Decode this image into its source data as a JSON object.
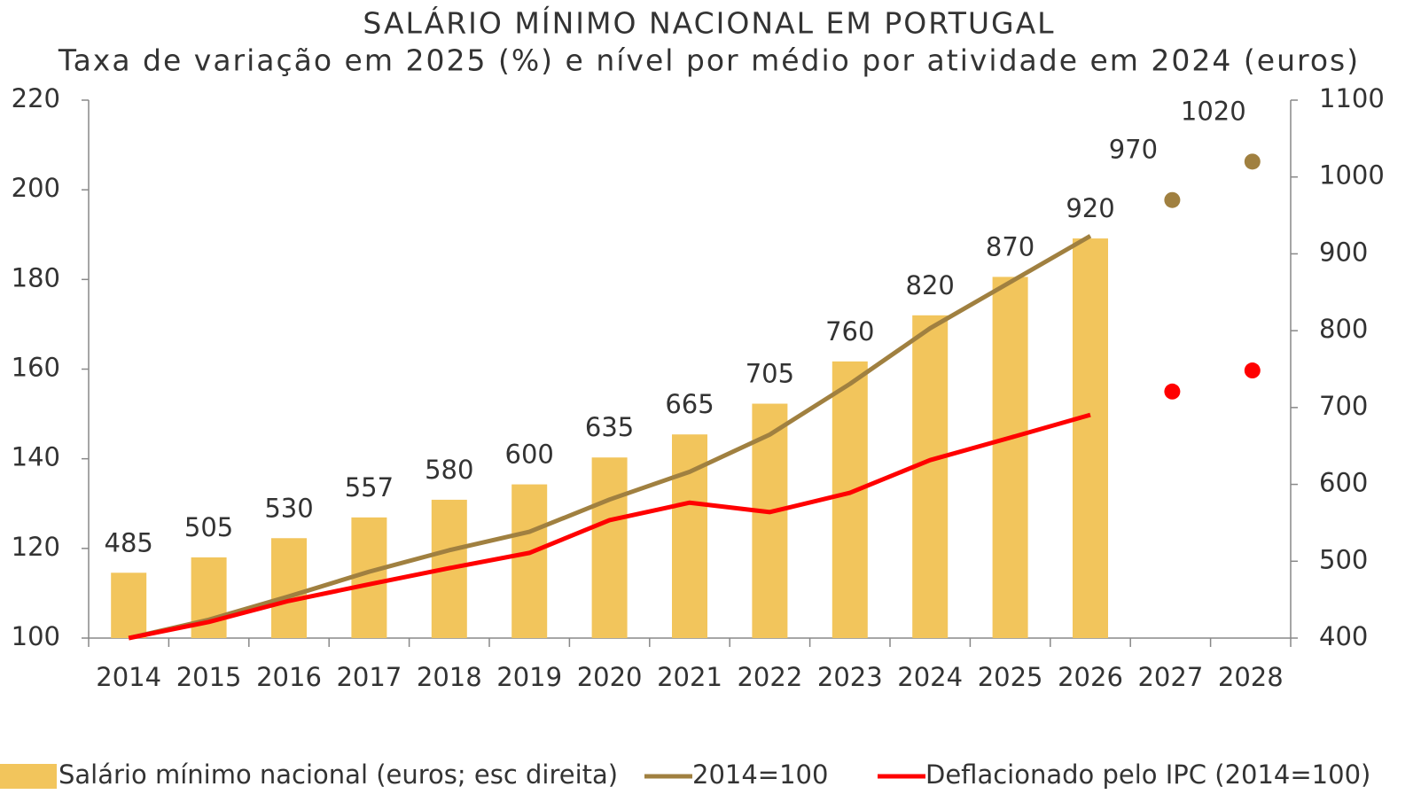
{
  "chart_data": {
    "type": "bar",
    "title": "SALÁRIO MÍNIMO NACIONAL EM PORTUGAL",
    "subtitle": "Taxa de variação em 2025 (%) e nível por médio por atividade em 2024 (euros)",
    "categories": [
      "2014",
      "2015",
      "2016",
      "2017",
      "2018",
      "2019",
      "2020",
      "2021",
      "2022",
      "2023",
      "2024",
      "2025",
      "2026",
      "2027",
      "2028"
    ],
    "ylim": [
      100,
      220
    ],
    "yticks": [
      100,
      120,
      140,
      160,
      180,
      200,
      220
    ],
    "y2lim": [
      400,
      1100
    ],
    "y2ticks": [
      400,
      500,
      600,
      700,
      800,
      900,
      1000,
      1100
    ],
    "series": [
      {
        "name": "Salário mínimo nacional (euros; esc direita)",
        "color": "#f2c55c",
        "style": "bar",
        "axis": "y2",
        "labels": true,
        "values": [
          485,
          505,
          530,
          557,
          580,
          600,
          635,
          665,
          705,
          760,
          820,
          870,
          920,
          null,
          null
        ]
      },
      {
        "name": "2014=100",
        "color": "#a08040",
        "style": "line",
        "values": [
          100,
          104.1,
          109.3,
          114.8,
          119.6,
          123.7,
          130.9,
          137.1,
          145.4,
          156.7,
          169.1,
          179.4,
          189.7,
          null,
          null
        ]
      },
      {
        "name": "Deflacionado pelo IPC (2014=100)",
        "color": "#ff0000",
        "style": "line",
        "values": [
          100,
          103.6,
          108.3,
          112,
          115.6,
          119,
          126.3,
          130.2,
          128.1,
          132.4,
          139.7,
          144.7,
          149.8,
          null,
          null
        ]
      },
      {
        "color": "#a08040",
        "style": "dot",
        "axis": "y2",
        "labels": true,
        "values": [
          null,
          null,
          null,
          null,
          null,
          null,
          null,
          null,
          null,
          null,
          null,
          null,
          null,
          970,
          1020
        ]
      },
      {
        "color": "#ff0000",
        "style": "dot",
        "values": [
          null,
          null,
          null,
          null,
          null,
          null,
          null,
          null,
          null,
          null,
          null,
          null,
          null,
          155,
          159.7
        ]
      }
    ]
  }
}
